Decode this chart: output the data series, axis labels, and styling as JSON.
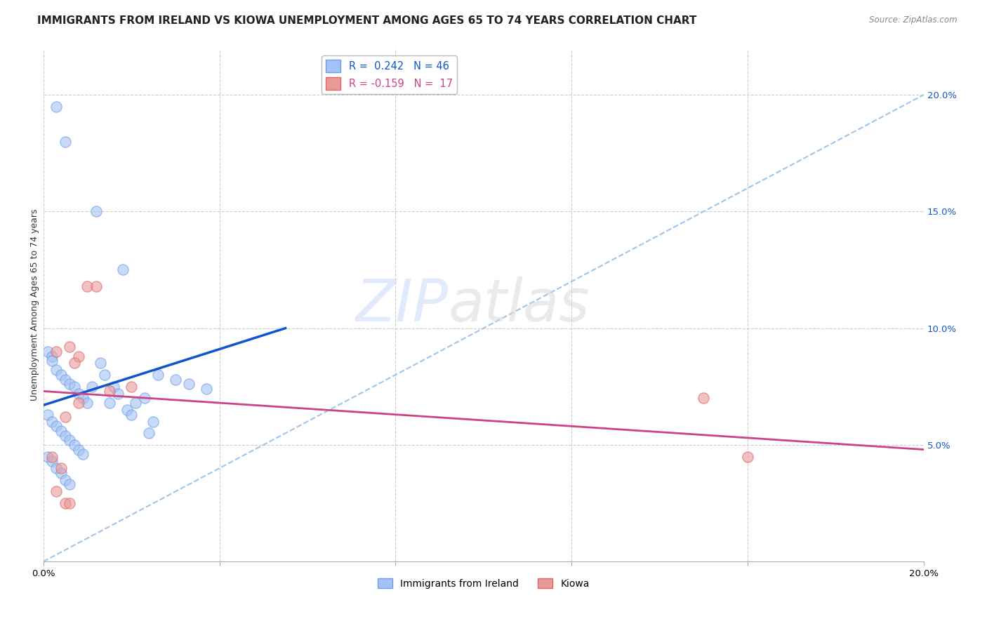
{
  "title": "IMMIGRANTS FROM IRELAND VS KIOWA UNEMPLOYMENT AMONG AGES 65 TO 74 YEARS CORRELATION CHART",
  "source": "Source: ZipAtlas.com",
  "ylabel": "Unemployment Among Ages 65 to 74 years",
  "xlim": [
    0.0,
    0.2
  ],
  "ylim": [
    0.0,
    0.22
  ],
  "xticks": [
    0.0,
    0.04,
    0.08,
    0.12,
    0.16,
    0.2
  ],
  "yticks_right": [
    0.05,
    0.1,
    0.15,
    0.2
  ],
  "yticklabels_right": [
    "5.0%",
    "10.0%",
    "15.0%",
    "20.0%"
  ],
  "blue_R": 0.242,
  "blue_N": 46,
  "pink_R": -0.159,
  "pink_N": 17,
  "blue_color": "#a4c2f4",
  "pink_color": "#ea9999",
  "blue_edge_color": "#6d9eeb",
  "pink_edge_color": "#e06666",
  "blue_line_color": "#1155cc",
  "pink_line_color": "#cc4488",
  "dashed_line_color": "#9fc5e8",
  "watermark_zip": "ZIP",
  "watermark_atlas": "atlas",
  "blue_scatter_x": [
    0.003,
    0.005,
    0.012,
    0.018,
    0.001,
    0.002,
    0.002,
    0.003,
    0.004,
    0.005,
    0.006,
    0.007,
    0.008,
    0.009,
    0.01,
    0.011,
    0.013,
    0.014,
    0.015,
    0.016,
    0.017,
    0.019,
    0.02,
    0.021,
    0.023,
    0.024,
    0.025,
    0.001,
    0.002,
    0.003,
    0.004,
    0.005,
    0.006,
    0.007,
    0.008,
    0.009,
    0.026,
    0.03,
    0.033,
    0.037,
    0.001,
    0.002,
    0.003,
    0.004,
    0.005,
    0.006
  ],
  "blue_scatter_y": [
    0.195,
    0.18,
    0.15,
    0.125,
    0.09,
    0.088,
    0.086,
    0.082,
    0.08,
    0.078,
    0.076,
    0.075,
    0.072,
    0.07,
    0.068,
    0.075,
    0.085,
    0.08,
    0.068,
    0.075,
    0.072,
    0.065,
    0.063,
    0.068,
    0.07,
    0.055,
    0.06,
    0.063,
    0.06,
    0.058,
    0.056,
    0.054,
    0.052,
    0.05,
    0.048,
    0.046,
    0.08,
    0.078,
    0.076,
    0.074,
    0.045,
    0.043,
    0.04,
    0.038,
    0.035,
    0.033
  ],
  "pink_scatter_x": [
    0.003,
    0.008,
    0.01,
    0.012,
    0.015,
    0.005,
    0.006,
    0.007,
    0.02,
    0.15,
    0.16,
    0.002,
    0.004,
    0.003,
    0.005,
    0.006,
    0.008
  ],
  "pink_scatter_y": [
    0.09,
    0.088,
    0.118,
    0.118,
    0.073,
    0.062,
    0.092,
    0.085,
    0.075,
    0.07,
    0.045,
    0.045,
    0.04,
    0.03,
    0.025,
    0.025,
    0.068
  ],
  "blue_trend_x": [
    0.0,
    0.055
  ],
  "blue_trend_y": [
    0.067,
    0.1
  ],
  "pink_trend_x": [
    0.0,
    0.2
  ],
  "pink_trend_y": [
    0.073,
    0.048
  ],
  "dashed_trend_x": [
    0.0,
    0.2
  ],
  "dashed_trend_y": [
    0.0,
    0.2
  ],
  "title_fontsize": 11,
  "label_fontsize": 9,
  "tick_fontsize": 9.5,
  "scatter_size": 120,
  "scatter_alpha": 0.6,
  "scatter_edge_width": 1.0
}
